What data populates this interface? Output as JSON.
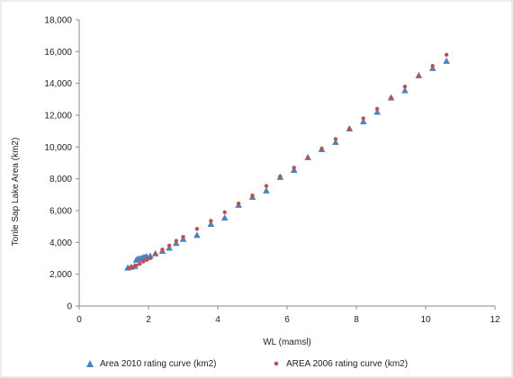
{
  "chart_data": {
    "type": "scatter",
    "xlabel": "WL (mamsl)",
    "ylabel": "Tonle Sap Lake Area (km2)",
    "xlim": [
      0,
      12
    ],
    "ylim": [
      0,
      18000
    ],
    "x_ticks": [
      "0",
      "2",
      "4",
      "6",
      "8",
      "10",
      "12"
    ],
    "y_ticks": [
      "0",
      "2,000",
      "4,000",
      "6,000",
      "8,000",
      "10,000",
      "12,000",
      "14,000",
      "16,000",
      "18,000"
    ],
    "grid": false,
    "legend_position": "bottom",
    "series": [
      {
        "name": "Area 2010 rating curve (km2)",
        "marker": "triangle",
        "color": "#4f81bd",
        "points": [
          [
            1.4,
            2400
          ],
          [
            1.5,
            2450
          ],
          [
            1.6,
            2500
          ],
          [
            1.65,
            2900
          ],
          [
            1.7,
            2950
          ],
          [
            1.75,
            2980
          ],
          [
            1.8,
            3000
          ],
          [
            1.85,
            3050
          ],
          [
            1.9,
            3080
          ],
          [
            1.95,
            3100
          ],
          [
            2.05,
            3150
          ],
          [
            2.2,
            3300
          ],
          [
            2.4,
            3450
          ],
          [
            2.6,
            3650
          ],
          [
            2.8,
            3950
          ],
          [
            3.0,
            4200
          ],
          [
            3.4,
            4450
          ],
          [
            3.8,
            5150
          ],
          [
            4.2,
            5550
          ],
          [
            4.6,
            6350
          ],
          [
            5.0,
            6850
          ],
          [
            5.4,
            7250
          ],
          [
            5.8,
            8100
          ],
          [
            6.2,
            8550
          ],
          [
            6.6,
            9350
          ],
          [
            7.0,
            9850
          ],
          [
            7.4,
            10300
          ],
          [
            7.8,
            11150
          ],
          [
            8.2,
            11600
          ],
          [
            8.6,
            12200
          ],
          [
            9.0,
            13100
          ],
          [
            9.4,
            13550
          ],
          [
            9.8,
            14500
          ],
          [
            10.2,
            14950
          ],
          [
            10.6,
            15400
          ]
        ]
      },
      {
        "name": "AREA 2006 rating curve (km2)",
        "marker": "dot",
        "color": "#c0504d",
        "points": [
          [
            1.45,
            2400
          ],
          [
            1.55,
            2450
          ],
          [
            1.65,
            2550
          ],
          [
            1.75,
            2650
          ],
          [
            1.85,
            2800
          ],
          [
            1.95,
            2900
          ],
          [
            2.05,
            3000
          ],
          [
            2.2,
            3250
          ],
          [
            2.4,
            3550
          ],
          [
            2.6,
            3800
          ],
          [
            2.8,
            4100
          ],
          [
            3.0,
            4350
          ],
          [
            3.4,
            4850
          ],
          [
            3.8,
            5350
          ],
          [
            4.2,
            5900
          ],
          [
            4.6,
            6450
          ],
          [
            5.0,
            6950
          ],
          [
            5.4,
            7550
          ],
          [
            5.8,
            8150
          ],
          [
            6.2,
            8700
          ],
          [
            6.6,
            9300
          ],
          [
            7.0,
            9900
          ],
          [
            7.4,
            10500
          ],
          [
            7.8,
            11150
          ],
          [
            8.2,
            11800
          ],
          [
            8.6,
            12400
          ],
          [
            9.0,
            13100
          ],
          [
            9.4,
            13800
          ],
          [
            9.8,
            14450
          ],
          [
            10.2,
            15100
          ],
          [
            10.6,
            15800
          ]
        ]
      }
    ]
  }
}
